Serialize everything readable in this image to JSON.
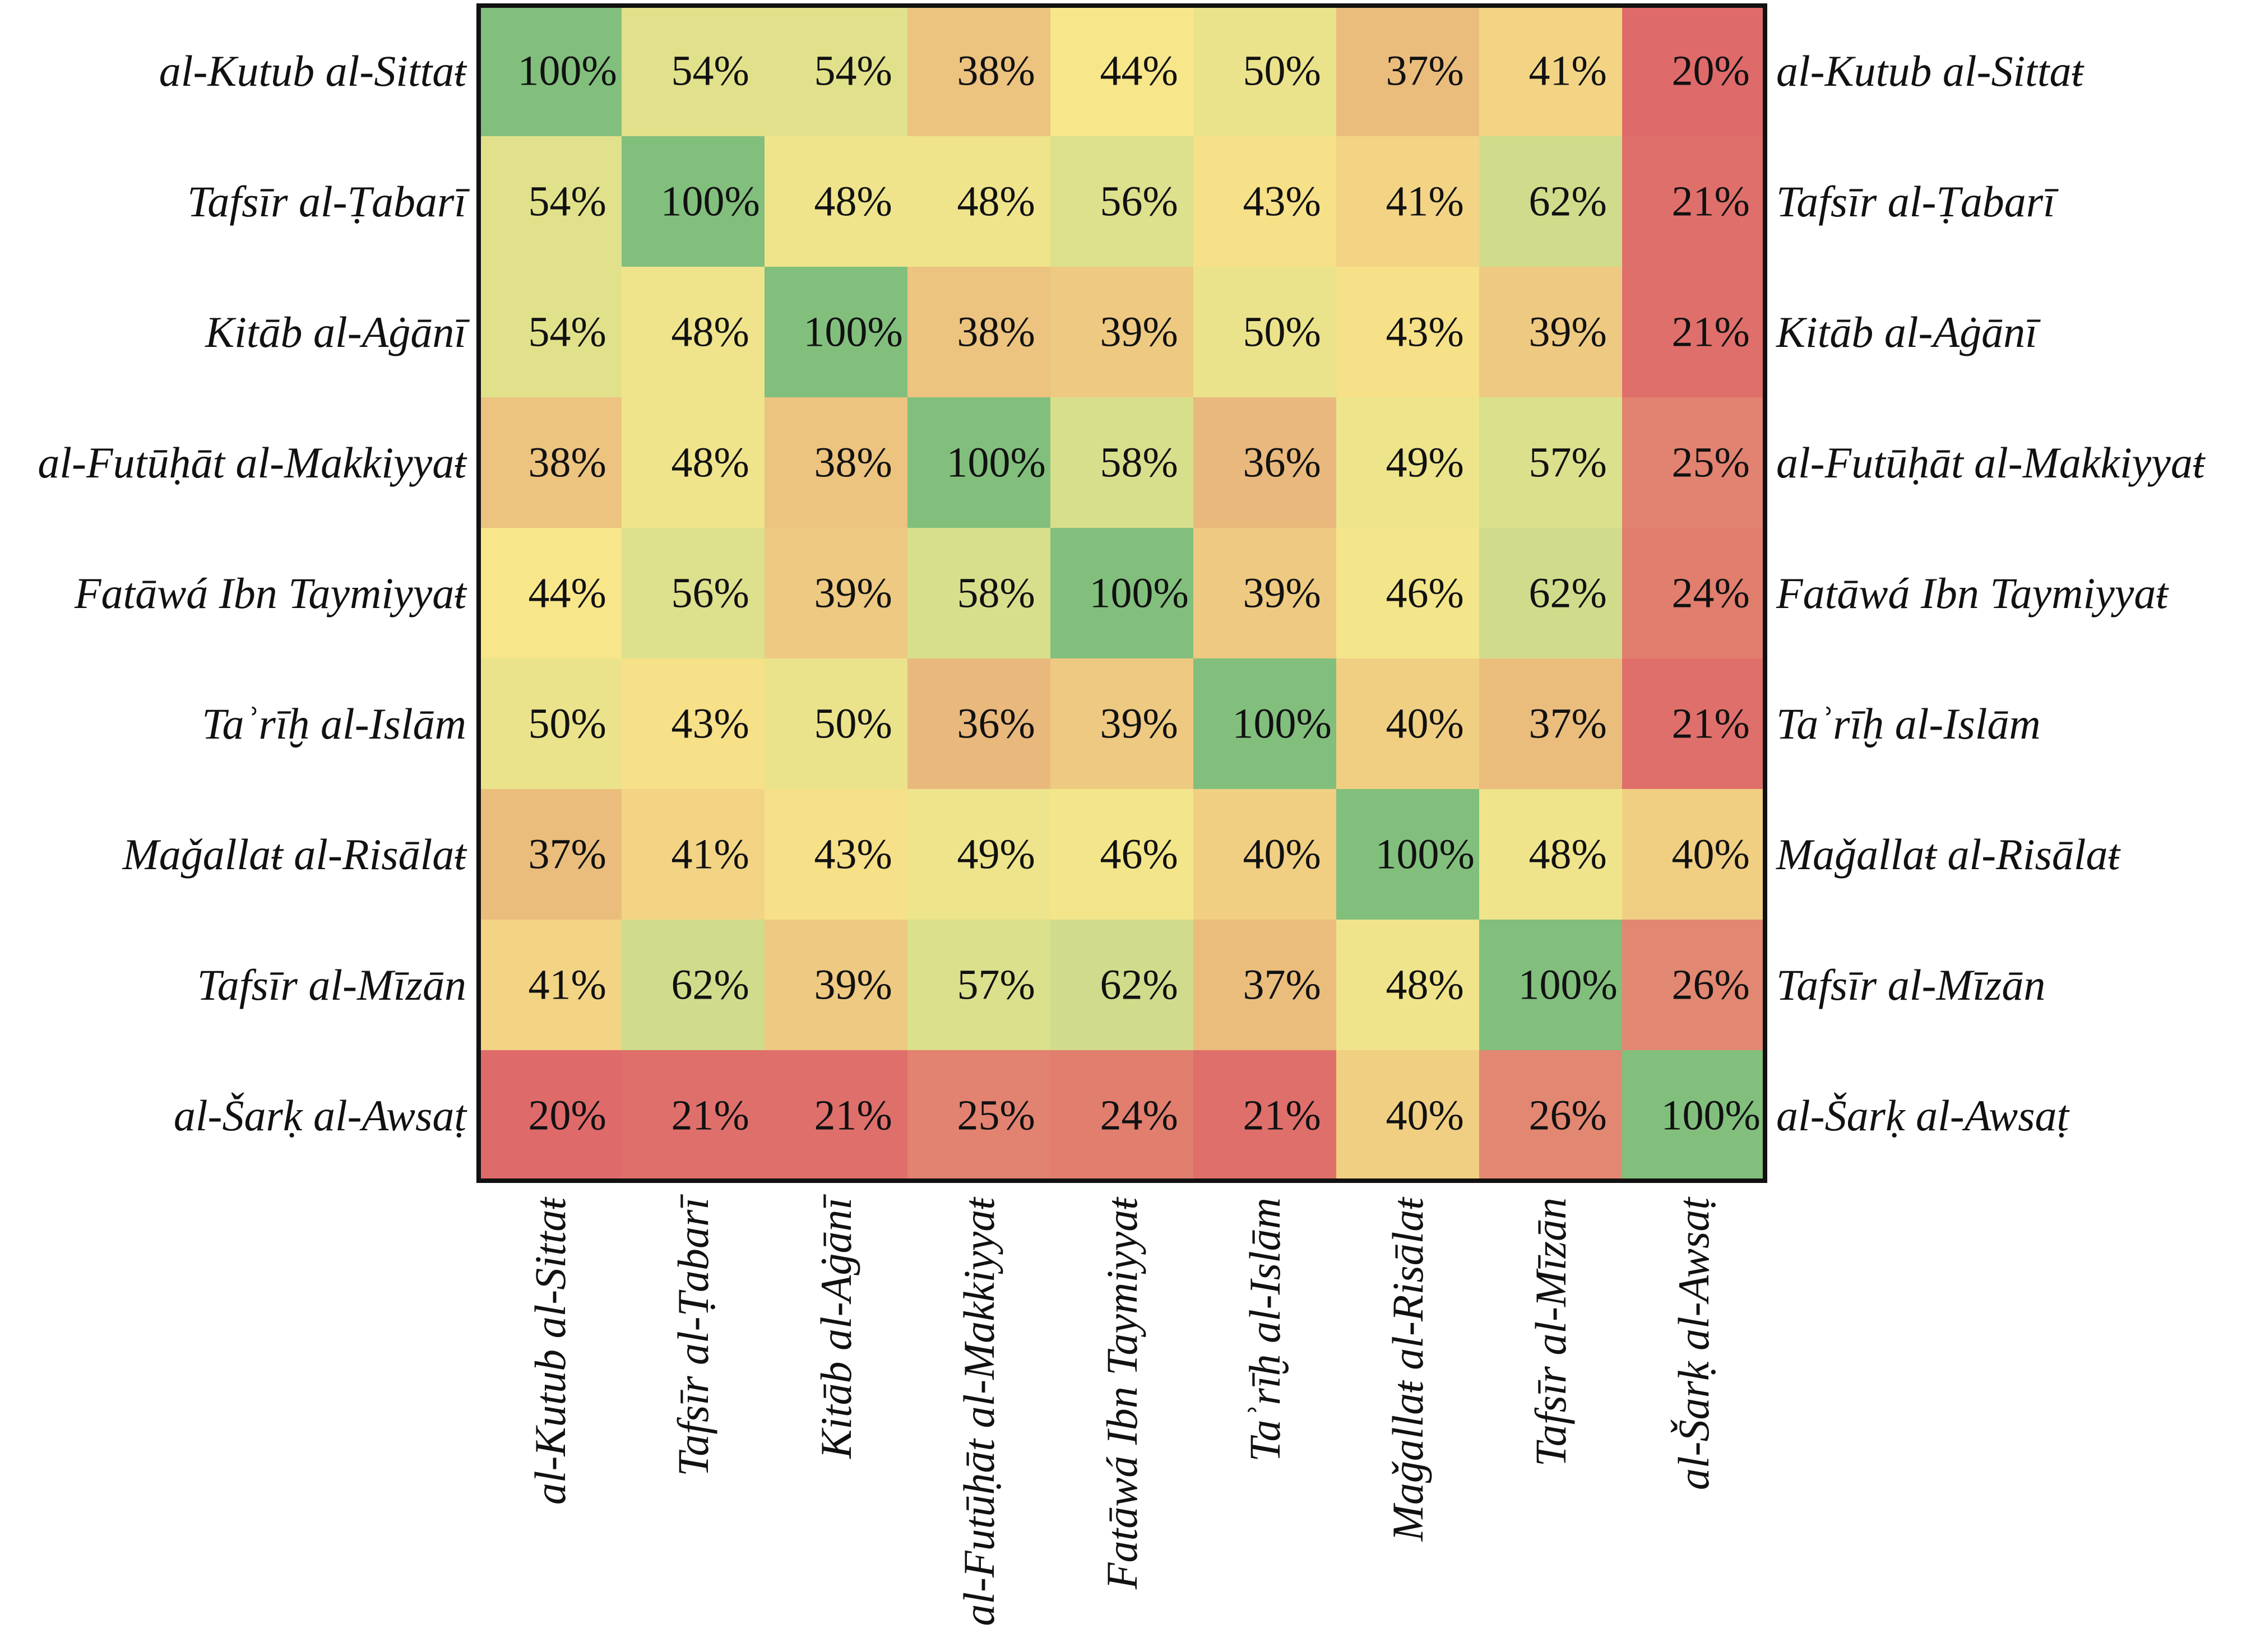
{
  "chart_data": {
    "type": "heatmap",
    "title": "",
    "xlabel": "",
    "ylabel": "",
    "row_labels": [
      "al-Kutub al-Sittaŧ",
      "Tafsīr al-Ṭabarī",
      "Kitāb al-Aġānī",
      "al-Futūḥāt al-Makkiyyaŧ",
      "Fatāwá Ibn Taymiyyaŧ",
      "Taʾrīḫ al-Islām",
      "Maǧallaŧ al-Risālaŧ",
      "Tafsīr al-Mīzān",
      "al-Šarḳ al-Awsaṭ"
    ],
    "col_labels": [
      "al-Kutub al-Sittaŧ",
      "Tafsīr al-Ṭabarī",
      "Kitāb al-Aġānī",
      "al-Futūḥāt al-Makkiyyaŧ",
      "Fatāwá Ibn Taymiyyaŧ",
      "Taʾrīḫ al-Islām",
      "Maǧallaŧ al-Risālaŧ",
      "Tafsīr al-Mīzān",
      "al-Šarḳ al-Awsaṭ"
    ],
    "unit": "%",
    "values": [
      [
        100,
        54,
        54,
        38,
        44,
        50,
        37,
        41,
        20
      ],
      [
        54,
        100,
        48,
        48,
        56,
        43,
        41,
        62,
        21
      ],
      [
        54,
        48,
        100,
        38,
        39,
        50,
        43,
        39,
        21
      ],
      [
        38,
        48,
        38,
        100,
        58,
        36,
        49,
        57,
        25
      ],
      [
        44,
        56,
        39,
        58,
        100,
        39,
        46,
        62,
        24
      ],
      [
        50,
        43,
        50,
        36,
        39,
        100,
        40,
        37,
        21
      ],
      [
        37,
        41,
        43,
        49,
        46,
        40,
        100,
        48,
        40
      ],
      [
        41,
        62,
        39,
        57,
        62,
        37,
        48,
        100,
        26
      ],
      [
        20,
        21,
        21,
        25,
        24,
        21,
        40,
        26,
        100
      ]
    ],
    "colors": {
      "high": "#82bf7d",
      "mid_high": "#d8df8c",
      "mid": "#f8e68a",
      "mid_low": "#eabd7d",
      "low": "#de6a6a",
      "border": "#111111"
    },
    "legend": "none",
    "grid": false
  }
}
